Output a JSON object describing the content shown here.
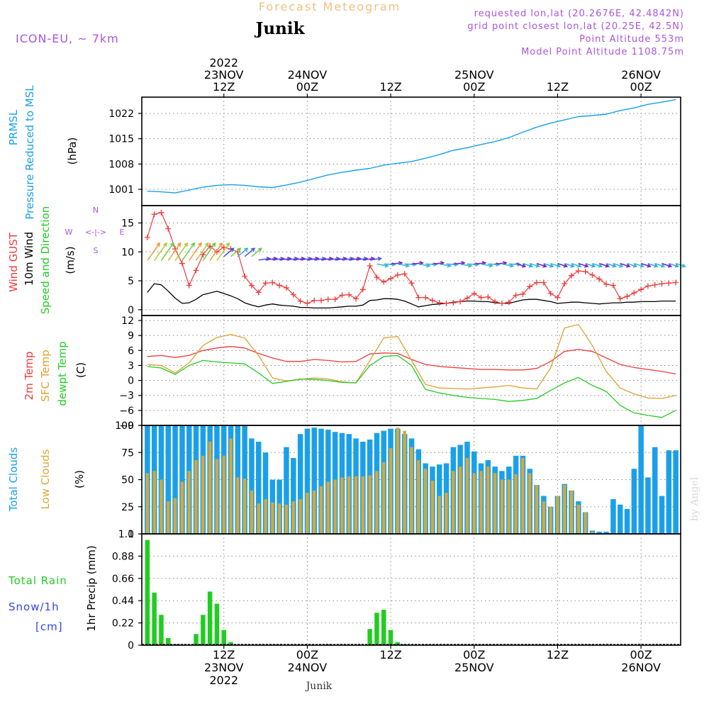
{
  "header": {
    "title": "Forecast Meteogram",
    "location": "Junik",
    "model": "ICON-EU, ~ 7km",
    "requested": "requested lon,lat (20.2676E, 42.4842N)",
    "grid_point": "grid point closest lon,lat (20.25E, 42.5N)",
    "point_altitude": "Point Altitude 553m",
    "model_altitude": "Model Point Altitude 1108.75m"
  },
  "footer": {
    "location": "Junik",
    "watermark": "by Angel"
  },
  "wind_legend": {
    "n": "N",
    "s": "S",
    "w": "W",
    "e": "E",
    "arrow_line": "<-|->"
  },
  "time_axis": {
    "top": [
      {
        "h": 24,
        "lines": [
          "2022",
          "23NOV",
          "12Z"
        ]
      },
      {
        "h": 36,
        "lines": [
          "24NOV",
          "00Z"
        ]
      },
      {
        "h": 48,
        "lines": [
          "12Z"
        ]
      },
      {
        "h": 60,
        "lines": [
          "25NOV",
          "00Z"
        ]
      },
      {
        "h": 72,
        "lines": [
          "12Z"
        ]
      },
      {
        "h": 84,
        "lines": [
          "26NOV",
          "00Z"
        ]
      }
    ],
    "bottom": [
      {
        "h": 24,
        "lines": [
          "12Z",
          "23NOV",
          "2022"
        ]
      },
      {
        "h": 36,
        "lines": [
          "00Z",
          "24NOV"
        ]
      },
      {
        "h": 48,
        "lines": [
          "12Z"
        ]
      },
      {
        "h": 60,
        "lines": [
          "00Z",
          "25NOV"
        ]
      },
      {
        "h": 72,
        "lines": [
          "12Z"
        ]
      },
      {
        "h": 84,
        "lines": [
          "00Z",
          "26NOV"
        ]
      }
    ]
  },
  "colors": {
    "pressure": "#1aa0e8",
    "gust": "#ee3b3b",
    "wind": "#000000",
    "temp2m": "#ee3b3b",
    "sfc": "#e0a030",
    "dewpt": "#22cc22",
    "total_cloud": "#1aa0e8",
    "low_cloud": "#d8a838",
    "rain": "#22cc22",
    "snow": "#3344ee",
    "purple": "#aa55dd",
    "title": "#f0c080"
  },
  "chart_data": [
    {
      "type": "line",
      "panel": "pressure",
      "ylabel_lines": [
        "PRMSL",
        "Pressure Reduced to MSL"
      ],
      "unit": "(hPa)",
      "yticks": [
        1001,
        1008,
        1015,
        1022
      ],
      "ylim": [
        996.5,
        1026.5
      ],
      "x_hours": [
        13,
        15,
        17,
        19,
        21,
        23,
        25,
        27,
        29,
        31,
        33,
        35,
        37,
        39,
        41,
        43,
        45,
        47,
        49,
        51,
        53,
        55,
        57,
        59,
        61,
        63,
        65,
        67,
        69,
        71,
        73,
        75,
        77,
        79,
        81,
        83,
        85,
        87,
        89
      ],
      "values": [
        1000.5,
        1000.3,
        1000,
        1000.8,
        1001.6,
        1002.1,
        1002.3,
        1002.1,
        1001.7,
        1001.5,
        1002.2,
        1003,
        1004,
        1005,
        1005.7,
        1006.3,
        1006.8,
        1007.7,
        1008.2,
        1008.7,
        1009.6,
        1010.6,
        1011.8,
        1012.5,
        1013.4,
        1014.2,
        1015.3,
        1016.8,
        1018.2,
        1019.3,
        1020.2,
        1021.1,
        1021.4,
        1021.8,
        1022.8,
        1023.5,
        1024.5,
        1025.1,
        1025.8
      ]
    },
    {
      "type": "line",
      "panel": "wind",
      "ylabel_lines": [
        "Wind GUST",
        "10m Wind",
        "Speed and Direction"
      ],
      "unit": "(m/s)",
      "yticks": [
        0,
        5,
        10,
        15
      ],
      "ylim": [
        -1,
        18
      ],
      "x_hours": [
        13,
        14,
        15,
        16,
        17,
        18,
        19,
        20,
        21,
        22,
        23,
        24,
        25,
        26,
        27,
        28,
        29,
        30,
        31,
        32,
        33,
        34,
        35,
        36,
        37,
        38,
        39,
        40,
        41,
        42,
        43,
        44,
        45,
        46,
        47,
        48,
        49,
        50,
        51,
        52,
        53,
        54,
        55,
        56,
        57,
        58,
        59,
        60,
        61,
        62,
        63,
        64,
        65,
        66,
        67,
        68,
        69,
        70,
        71,
        72,
        73,
        74,
        75,
        76,
        77,
        78,
        79,
        80,
        81,
        82,
        83,
        84,
        85,
        86,
        87,
        88,
        89
      ],
      "series": [
        {
          "name": "Wind GUST",
          "values": [
            12.5,
            16.5,
            16.8,
            14,
            10.5,
            8,
            4.2,
            6.8,
            9.5,
            11,
            10,
            10.8,
            10.5,
            10,
            5.8,
            4.2,
            3,
            4.6,
            4.7,
            4.2,
            3.8,
            2.6,
            1.5,
            1.1,
            1.6,
            1.6,
            1.8,
            1.8,
            2.5,
            2.6,
            1.9,
            3.5,
            7.6,
            5.6,
            4.8,
            5.4,
            6,
            6.2,
            4.6,
            2.1,
            2.1,
            1.6,
            1.2,
            1.1,
            1.2,
            1.4,
            2,
            2.8,
            2.1,
            2.2,
            1.4,
            1.1,
            1.3,
            2.5,
            2.7,
            4,
            4.7,
            4.7,
            2.8,
            2.1,
            4.5,
            5.9,
            6.7,
            6.6,
            6,
            5.3,
            4.4,
            4.2,
            1.9,
            2.3,
            2.9,
            3.5,
            4.1,
            4.3,
            4.5,
            4.6,
            4.7
          ]
        },
        {
          "name": "10m Wind",
          "values": [
            3,
            4.5,
            4.3,
            3.2,
            2,
            1.1,
            1.2,
            1.8,
            2.6,
            2.9,
            3.2,
            2.8,
            2.4,
            1.9,
            1.2,
            0.8,
            0.5,
            0.8,
            1,
            0.8,
            0.7,
            0.6,
            0.4,
            0.4,
            0.3,
            0.3,
            0.3,
            0.4,
            0.5,
            0.6,
            0.6,
            0.8,
            1.6,
            1.7,
            1.9,
            1.9,
            1.8,
            1.5,
            1,
            0.5,
            0.7,
            0.9,
            1,
            1.1,
            1.3,
            1.4,
            1.5,
            1.5,
            1.4,
            1.4,
            1.2,
            1.1,
            1.1,
            1.4,
            1.7,
            1.8,
            1.8,
            1.6,
            1.4,
            1.1,
            1.2,
            1.3,
            1.3,
            1.2,
            1.1,
            1,
            1.1,
            1.2,
            1.2,
            1.3,
            1.3,
            1.4,
            1.4,
            1.4,
            1.5,
            1.5,
            1.5
          ]
        }
      ]
    },
    {
      "type": "line",
      "panel": "temperature",
      "ylabel_lines": [
        "2m Temp",
        "SFC Temp",
        "dewpt Temp"
      ],
      "unit": "(C)",
      "yticks": [
        -9,
        -6,
        -3,
        0,
        3,
        6,
        9,
        12
      ],
      "ylim": [
        -9,
        13
      ],
      "x_hours": [
        13,
        15,
        17,
        19,
        21,
        23,
        25,
        27,
        29,
        31,
        33,
        35,
        37,
        39,
        41,
        43,
        45,
        47,
        49,
        51,
        53,
        55,
        57,
        59,
        61,
        63,
        65,
        67,
        69,
        71,
        73,
        75,
        77,
        79,
        81,
        83,
        85,
        87,
        89
      ],
      "series": [
        {
          "name": "2m Temp",
          "values": [
            4.8,
            5,
            4.6,
            5,
            6,
            6.5,
            6.8,
            6.5,
            5.4,
            4.5,
            3.8,
            3.8,
            4.2,
            4,
            3.7,
            3.8,
            5.3,
            5.5,
            5.4,
            4.2,
            3.2,
            2.8,
            2.6,
            2.4,
            2.2,
            2.2,
            2.1,
            2.1,
            2.4,
            3.8,
            5.8,
            6.2,
            5.8,
            4.5,
            3.2,
            2.6,
            2.2,
            1.8,
            1.3
          ]
        },
        {
          "name": "SFC Temp",
          "values": [
            3.2,
            3,
            1.5,
            3.5,
            7,
            8.6,
            9.2,
            8.5,
            5,
            0.5,
            -0.1,
            0.2,
            0.5,
            0.3,
            -0.3,
            -0.5,
            4,
            8.5,
            8.8,
            4,
            -0.8,
            -1.5,
            -1.6,
            -1.7,
            -1.5,
            -1.3,
            -1,
            -1.5,
            -1.7,
            2.5,
            10.5,
            11.2,
            7,
            1.8,
            -1.5,
            -2.7,
            -3.5,
            -3.6,
            -3
          ]
        },
        {
          "name": "dewpt Temp",
          "values": [
            2.8,
            2.5,
            1.2,
            3,
            4,
            3.7,
            3.5,
            3.3,
            1.5,
            -0.6,
            -0.2,
            0.3,
            0.2,
            0,
            -0.4,
            -0.5,
            3,
            4.8,
            5,
            3,
            -1.8,
            -2.5,
            -3,
            -3.4,
            -3.6,
            -3.8,
            -4.2,
            -4,
            -3.6,
            -2,
            -0.5,
            0.6,
            -1,
            -2.2,
            -5,
            -6.5,
            -7,
            -7.4,
            -6
          ]
        }
      ]
    },
    {
      "type": "bar",
      "panel": "clouds",
      "ylabel_lines": [
        "Total Clouds",
        "Low Clouds"
      ],
      "unit": "(%)",
      "yticks": [
        0,
        25,
        50,
        75,
        100
      ],
      "ylim": [
        0,
        100
      ],
      "x_hours": [
        13,
        14,
        15,
        16,
        17,
        18,
        19,
        20,
        21,
        22,
        23,
        24,
        25,
        26,
        27,
        28,
        29,
        30,
        31,
        32,
        33,
        34,
        35,
        36,
        37,
        38,
        39,
        40,
        41,
        42,
        43,
        44,
        45,
        46,
        47,
        48,
        49,
        50,
        51,
        52,
        53,
        54,
        55,
        56,
        57,
        58,
        59,
        60,
        61,
        62,
        63,
        64,
        65,
        66,
        67,
        68,
        69,
        70,
        71,
        72,
        73,
        74,
        75,
        76,
        77,
        78,
        79,
        80,
        81,
        82,
        83,
        84,
        85,
        86,
        87,
        88,
        89
      ],
      "series": [
        {
          "name": "Total Clouds",
          "values": [
            100,
            100,
            100,
            100,
            100,
            100,
            100,
            100,
            100,
            100,
            100,
            100,
            100,
            100,
            100,
            88,
            85,
            75,
            50,
            50,
            80,
            70,
            92,
            97,
            98,
            97,
            96,
            94,
            93,
            92,
            88,
            85,
            87,
            93,
            95,
            97,
            97,
            92,
            88,
            78,
            65,
            62,
            64,
            65,
            80,
            82,
            85,
            76,
            65,
            68,
            62,
            58,
            62,
            72,
            72,
            60,
            45,
            35,
            25,
            35,
            46,
            40,
            30,
            20,
            3,
            2,
            2,
            32,
            27,
            23,
            60,
            100,
            52,
            80,
            35,
            77,
            77
          ]
        },
        {
          "name": "Low Clouds",
          "values": [
            56,
            58,
            50,
            30,
            33,
            48,
            58,
            68,
            72,
            85,
            69,
            72,
            88,
            52,
            51,
            40,
            28,
            32,
            29,
            28,
            27,
            30,
            32,
            38,
            40,
            44,
            48,
            50,
            52,
            53,
            53,
            53,
            54,
            58,
            66,
            79,
            98,
            95,
            80,
            68,
            60,
            49,
            35,
            38,
            58,
            62,
            70,
            56,
            58,
            62,
            56,
            50,
            50,
            55,
            70,
            56,
            45,
            30,
            25,
            35,
            45,
            40,
            27,
            20,
            2,
            0,
            0,
            0,
            0,
            0,
            0,
            0,
            0,
            0,
            0,
            0,
            0
          ]
        }
      ]
    },
    {
      "type": "bar",
      "panel": "precip",
      "ylabel_lines": [
        "1hr Precip (mm)"
      ],
      "left_labels": [
        "Total  Rain",
        "Snow/1h",
        "[cm]"
      ],
      "yticks": [
        0,
        0.22,
        0.44,
        0.66,
        0.88,
        1.1
      ],
      "ylim": [
        0,
        1.1
      ],
      "x_hours": [
        13,
        14,
        15,
        16,
        17,
        18,
        19,
        20,
        21,
        22,
        23,
        24,
        25,
        26,
        27,
        28,
        29,
        30,
        31,
        32,
        33,
        34,
        35,
        36,
        37,
        38,
        39,
        40,
        41,
        42,
        43,
        44,
        45,
        46,
        47,
        48,
        49,
        50,
        51,
        52,
        53,
        54,
        55,
        56,
        57,
        58,
        59,
        60,
        61,
        62,
        63,
        64,
        65,
        66,
        67,
        68,
        69,
        70,
        71,
        72,
        73,
        74,
        75,
        76,
        77,
        78,
        79,
        80,
        81,
        82,
        83,
        84,
        85,
        86,
        87,
        88,
        89
      ],
      "series": [
        {
          "name": "Total Rain",
          "values": [
            1.04,
            0.52,
            0.3,
            0.07,
            0.01,
            0,
            0,
            0.11,
            0.3,
            0.53,
            0.41,
            0.15,
            0.03,
            0,
            0,
            0,
            0,
            0,
            0,
            0,
            0,
            0,
            0,
            0,
            0,
            0,
            0.01,
            0,
            0,
            0,
            0,
            0,
            0.16,
            0.32,
            0.35,
            0.15,
            0.03,
            0.01,
            0,
            0,
            0,
            0,
            0,
            0,
            0,
            0,
            0,
            0,
            0,
            0,
            0,
            0,
            0,
            0,
            0,
            0,
            0,
            0,
            0,
            0,
            0,
            0,
            0,
            0,
            0,
            0,
            0,
            0,
            0,
            0,
            0,
            0,
            0,
            0,
            0,
            0,
            0
          ]
        },
        {
          "name": "Snow/1h",
          "values": [
            0,
            0,
            0,
            0,
            0,
            0,
            0,
            0,
            0,
            0,
            0,
            0,
            0,
            0,
            0,
            0,
            0,
            0,
            0,
            0,
            0,
            0,
            0,
            0,
            0,
            0,
            0,
            0,
            0,
            0,
            0,
            0,
            0,
            0,
            0,
            0,
            0,
            0,
            0,
            0,
            0,
            0,
            0,
            0,
            0,
            0,
            0,
            0,
            0,
            0,
            0,
            0,
            0,
            0,
            0,
            0,
            0,
            0,
            0,
            0,
            0,
            0,
            0,
            0,
            0,
            0,
            0,
            0,
            0,
            0,
            0,
            0,
            0,
            0,
            0,
            0,
            0
          ]
        }
      ]
    }
  ]
}
